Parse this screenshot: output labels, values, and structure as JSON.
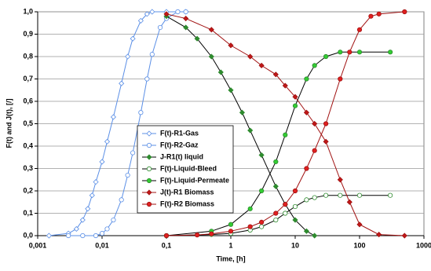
{
  "chart_data": {
    "type": "line",
    "xlabel": "Time, [h]",
    "ylabel": "F(t) and J(t), [/]",
    "xscale": "log",
    "xlim": [
      0.001,
      1000
    ],
    "ylim": [
      0,
      1
    ],
    "xticks": [
      {
        "value": 0.001,
        "label": "0,001"
      },
      {
        "value": 0.01,
        "label": "0,01"
      },
      {
        "value": 0.1,
        "label": "0,1"
      },
      1,
      10,
      100,
      1000
    ],
    "yticks": [
      {
        "value": 0,
        "label": "0,0"
      },
      {
        "value": 0.1,
        "label": "0,1"
      },
      {
        "value": 0.2,
        "label": "0,2"
      },
      {
        "value": 0.3,
        "label": "0,3"
      },
      {
        "value": 0.4,
        "label": "0,4"
      },
      {
        "value": 0.5,
        "label": "0,5"
      },
      {
        "value": 0.6,
        "label": "0,6"
      },
      {
        "value": 0.7,
        "label": "0,7"
      },
      {
        "value": 0.8,
        "label": "0,8"
      },
      {
        "value": 0.9,
        "label": "0,9"
      },
      {
        "value": 1,
        "label": "1,0"
      }
    ],
    "grid": true,
    "legend": "center",
    "series": [
      {
        "name": "F(t)-R1-Gas",
        "color": "#5b8fe6",
        "line_color": "#5b8fe6",
        "marker": "diamond",
        "marker_fill": "#ffffff",
        "x": [
          0.0015,
          0.003,
          0.004,
          0.005,
          0.006,
          0.007,
          0.008,
          0.01,
          0.012,
          0.015,
          0.02,
          0.025,
          0.03,
          0.04,
          0.05,
          0.06,
          0.1,
          0.2
        ],
        "values": [
          0,
          0.01,
          0.03,
          0.07,
          0.12,
          0.18,
          0.24,
          0.33,
          0.42,
          0.53,
          0.68,
          0.8,
          0.88,
          0.96,
          0.99,
          1,
          1,
          1
        ]
      },
      {
        "name": "F(t)-R2-Gaz",
        "color": "#5b8fe6",
        "line_color": "#5b8fe6",
        "marker": "circle",
        "marker_fill": "#ffffff",
        "x": [
          0.003,
          0.005,
          0.008,
          0.01,
          0.012,
          0.015,
          0.02,
          0.025,
          0.03,
          0.04,
          0.05,
          0.06,
          0.08,
          0.1,
          0.15,
          0.2
        ],
        "values": [
          0,
          0,
          0,
          0.01,
          0.03,
          0.07,
          0.16,
          0.27,
          0.37,
          0.55,
          0.7,
          0.81,
          0.93,
          0.97,
          1,
          1
        ]
      },
      {
        "name": "J-R1(t) liquid",
        "color": "#2e8b2e",
        "line_color": "#000000",
        "marker": "diamond",
        "marker_fill": "#2e8b2e",
        "x": [
          0.1,
          0.2,
          0.3,
          0.5,
          0.7,
          1,
          1.5,
          2,
          3,
          5,
          7,
          10,
          15,
          20
        ],
        "values": [
          0.98,
          0.93,
          0.88,
          0.8,
          0.73,
          0.65,
          0.55,
          0.47,
          0.36,
          0.22,
          0.14,
          0.07,
          0.02,
          0
        ]
      },
      {
        "name": "F(t)-Liquid-Bleed",
        "color": "#2e8b2e",
        "line_color": "#000000",
        "marker": "circle",
        "marker_fill": "#ffffff",
        "x": [
          0.1,
          0.5,
          1,
          2,
          3,
          5,
          7,
          10,
          15,
          20,
          30,
          50,
          100,
          300
        ],
        "values": [
          0,
          0.005,
          0.01,
          0.025,
          0.04,
          0.07,
          0.1,
          0.13,
          0.16,
          0.17,
          0.18,
          0.18,
          0.18,
          0.18
        ]
      },
      {
        "name": "F(t)-Liquid-Permeate",
        "color": "#2e8b2e",
        "line_color": "#000000",
        "marker": "circle",
        "marker_fill": "#33cc33",
        "x": [
          0.1,
          0.5,
          1,
          2,
          3,
          5,
          7,
          10,
          15,
          20,
          30,
          50,
          100,
          300
        ],
        "values": [
          0,
          0.02,
          0.05,
          0.12,
          0.2,
          0.33,
          0.45,
          0.58,
          0.7,
          0.76,
          0.8,
          0.82,
          0.82,
          0.82
        ]
      },
      {
        "name": "J(t)-R1 Biomass",
        "color": "#a01010",
        "line_color": "#a01010",
        "marker": "diamond",
        "marker_fill": "#c01818",
        "x": [
          0.1,
          0.2,
          0.5,
          1,
          2,
          3,
          5,
          7,
          10,
          15,
          20,
          30,
          50,
          70,
          100,
          200,
          500
        ],
        "values": [
          0.99,
          0.97,
          0.92,
          0.85,
          0.8,
          0.76,
          0.72,
          0.67,
          0.62,
          0.55,
          0.5,
          0.42,
          0.25,
          0.15,
          0.05,
          0.005,
          0
        ]
      },
      {
        "name": "F(t)-R2 Biomass",
        "color": "#a01010",
        "line_color": "#a01010",
        "marker": "circle",
        "marker_fill": "#e02020",
        "x": [
          0.1,
          0.3,
          0.5,
          1,
          2,
          3,
          5,
          7,
          10,
          15,
          20,
          30,
          50,
          70,
          100,
          150,
          200,
          500
        ],
        "values": [
          0,
          0.003,
          0.008,
          0.02,
          0.04,
          0.06,
          0.1,
          0.14,
          0.2,
          0.3,
          0.38,
          0.5,
          0.7,
          0.82,
          0.92,
          0.98,
          0.99,
          1
        ]
      }
    ]
  }
}
